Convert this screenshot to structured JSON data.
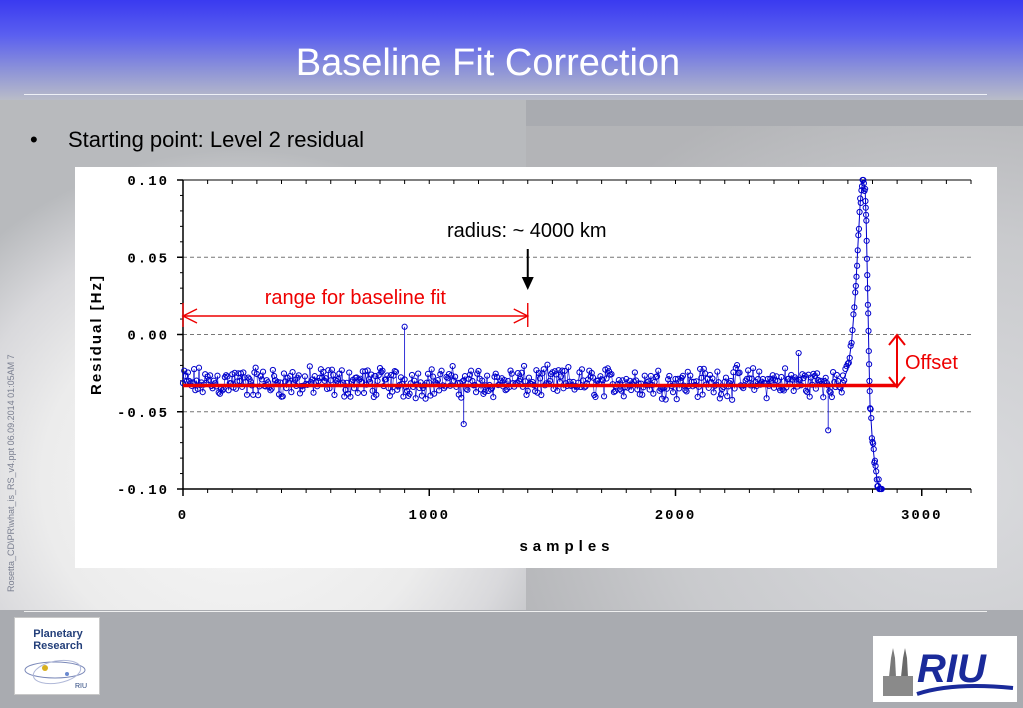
{
  "slide": {
    "title": "Baseline Fit Correction",
    "bullet": "Starting point: Level 2 residual",
    "footer_vertical": "Rosetta_CD\\PR\\what_is_RS_v4.ppt  06.09.2014 01:05AM  7"
  },
  "logos": {
    "left_text_line1": "Planetary",
    "left_text_line2": "Research",
    "left_small": "RIU",
    "right_text": "RIU"
  },
  "colors": {
    "data": "#0000cc",
    "baseline": "#ee0000",
    "annotation": "#ee0000",
    "title_bar": "#3a3af0"
  },
  "chart_data": {
    "type": "scatter",
    "xlabel": "samples",
    "ylabel": "Residual [Hz]",
    "xlim": [
      0,
      3200
    ],
    "ylim": [
      -0.1,
      0.1
    ],
    "xticks": [
      0,
      1000,
      2000,
      3000
    ],
    "xtick_labels": [
      "0",
      "1000",
      "2000",
      "3000"
    ],
    "yticks": [
      0.1,
      0.05,
      0.0,
      -0.05,
      -0.1
    ],
    "ytick_labels": [
      "0.10",
      "0.05",
      "0.00",
      "-0.05",
      "-0.10"
    ],
    "grid": "horizontal-dashed",
    "baseline_y": -0.033,
    "noise": {
      "mean": -0.031,
      "amplitude": 0.012,
      "samples_end": 2680
    },
    "spike": [
      [
        2680,
        -0.03
      ],
      [
        2700,
        -0.022
      ],
      [
        2715,
        -0.005
      ],
      [
        2730,
        0.025
      ],
      [
        2740,
        0.055
      ],
      [
        2750,
        0.085
      ],
      [
        2760,
        0.1
      ],
      [
        2770,
        0.095
      ],
      [
        2775,
        0.07
      ],
      [
        2780,
        0.03
      ],
      [
        2785,
        -0.01
      ],
      [
        2790,
        -0.045
      ],
      [
        2800,
        -0.07
      ],
      [
        2810,
        -0.085
      ],
      [
        2820,
        -0.095
      ],
      [
        2830,
        -0.1
      ],
      [
        2840,
        -0.1
      ]
    ],
    "outliers": [
      [
        900,
        0.005
      ],
      [
        2620,
        -0.062
      ],
      [
        1140,
        -0.058
      ],
      [
        2500,
        -0.012
      ]
    ],
    "annotations": {
      "radius_label": "radius: ~ 4000 km",
      "radius_x": 1400,
      "range_label": "range for baseline fit",
      "range_x": [
        0,
        1400
      ],
      "offset_label": "Offset"
    }
  }
}
